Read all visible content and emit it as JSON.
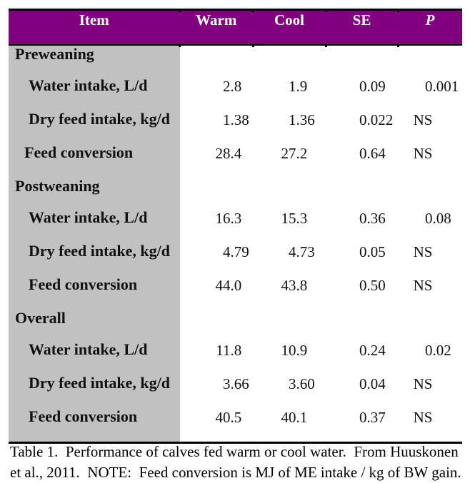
{
  "chart_data": {
    "type": "table",
    "title": "Table 1. Performance of calves fed warm or cool water. From Huuskonen et al., 2011. NOTE: Feed conversion is MJ of ME intake / kg of BW gain.",
    "columns": [
      "Item",
      "Warm",
      "Cool",
      "SE",
      "P"
    ],
    "rows": [
      [
        "Preweaning",
        "",
        "",
        "",
        ""
      ],
      [
        "Water intake, L/d",
        "2.8",
        "1.9",
        "0.09",
        "0.001"
      ],
      [
        "Dry feed intake, kg/d",
        "1.38",
        "1.36",
        "0.022",
        "NS"
      ],
      [
        "Feed conversion",
        "28.4",
        "27.2",
        "0.64",
        "NS"
      ],
      [
        "Postweaning",
        "",
        "",
        "",
        ""
      ],
      [
        "Water intake, L/d",
        "16.3",
        "15.3",
        "0.36",
        "0.08"
      ],
      [
        "Dry feed intake, kg/d",
        "4.79",
        "4.73",
        "0.05",
        "NS"
      ],
      [
        "Feed conversion",
        "44.0",
        "43.8",
        "0.50",
        "NS"
      ],
      [
        "Overall",
        "",
        "",
        "",
        ""
      ],
      [
        "Water intake, L/d",
        "11.8",
        "10.9",
        "0.24",
        "0.02"
      ],
      [
        "Dry feed intake, kg/d",
        "3.66",
        "3.60",
        "0.04",
        "NS"
      ],
      [
        "Feed conversion",
        "40.5",
        "40.1",
        "0.37",
        "NS"
      ]
    ]
  },
  "colors": {
    "header_bg": "#800080",
    "header_text": "#ffffff",
    "item_col_bg": "#c1c1c1",
    "border": "#000000",
    "body_text": "#111111"
  },
  "table": {
    "columns": [
      {
        "label": "Item",
        "italic": false
      },
      {
        "label": "Warm",
        "italic": false
      },
      {
        "label": "Cool",
        "italic": false
      },
      {
        "label": "SE",
        "italic": false
      },
      {
        "label": "P",
        "italic": true
      }
    ],
    "rows": [
      {
        "type": "section",
        "label": "Preweaning",
        "values": [
          "",
          "",
          "",
          ""
        ]
      },
      {
        "type": "item",
        "label": "Water intake, L/d",
        "values": [
          "2.8",
          "1.9",
          "0.09",
          "0.001"
        ]
      },
      {
        "type": "item",
        "label": "Dry feed intake, kg/d",
        "values": [
          "1.38",
          "1.36",
          "0.022",
          "NS"
        ]
      },
      {
        "type": "item-sm",
        "label": "Feed conversion",
        "values": [
          "28.4",
          "27.2",
          "0.64",
          "NS"
        ]
      },
      {
        "type": "section",
        "label": "Postweaning",
        "values": [
          "",
          "",
          "",
          ""
        ]
      },
      {
        "type": "item",
        "label": "Water intake, L/d",
        "values": [
          "16.3",
          "15.3",
          "0.36",
          "0.08"
        ]
      },
      {
        "type": "item",
        "label": "Dry feed intake, kg/d",
        "values": [
          "4.79",
          "4.73",
          "0.05",
          "NS"
        ]
      },
      {
        "type": "item",
        "label": "Feed conversion",
        "values": [
          "44.0",
          "43.8",
          "0.50",
          "NS"
        ]
      },
      {
        "type": "section",
        "label": "Overall",
        "values": [
          "",
          "",
          "",
          ""
        ]
      },
      {
        "type": "item",
        "label": "Water intake, L/d",
        "values": [
          "11.8",
          "10.9",
          "0.24",
          "0.02"
        ]
      },
      {
        "type": "item",
        "label": "Dry feed intake, kg/d",
        "values": [
          "3.66",
          "3.60",
          "0.04",
          "NS"
        ]
      },
      {
        "type": "item",
        "label": "Feed conversion",
        "values": [
          "40.5",
          "40.1",
          "0.37",
          "NS"
        ]
      }
    ]
  },
  "caption_lines": [
    "Table 1.  Performance of calves fed warm or cool water.  From Huuskonen",
    "et al., 2011.  NOTE:  Feed conversion is MJ of ME intake / kg of BW gain."
  ]
}
